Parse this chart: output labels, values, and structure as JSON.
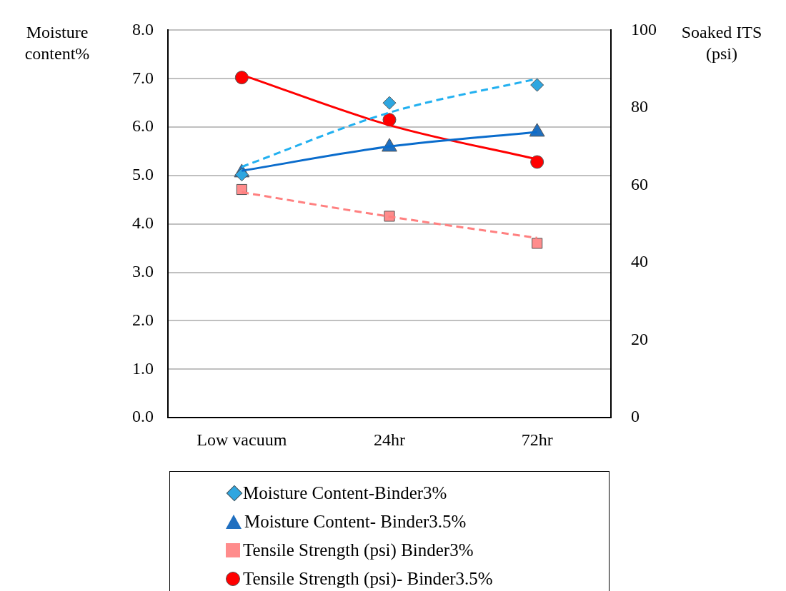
{
  "chart_data": {
    "type": "line",
    "ylabel": "Moisture content%",
    "y2label": "Soaked ITS (psi)",
    "categories": [
      "Low vacuum",
      "24hr",
      "72hr"
    ],
    "ylim": [
      0,
      8
    ],
    "yticks": [
      {
        "value": 0,
        "label": "0.0"
      },
      {
        "value": 1,
        "label": "1.0"
      },
      {
        "value": 2,
        "label": "2.0"
      },
      {
        "value": 3,
        "label": "3.0"
      },
      {
        "value": 4,
        "label": "4.0"
      },
      {
        "value": 5,
        "label": "5.0"
      },
      {
        "value": 6,
        "label": "6.0"
      },
      {
        "value": 7,
        "label": "7.0"
      },
      {
        "value": 8,
        "label": "8.0"
      }
    ],
    "y2lim": [
      0,
      100
    ],
    "y2ticks": [
      0,
      20,
      40,
      60,
      80,
      100
    ],
    "grid": "y",
    "legend": "bottom",
    "series": [
      {
        "type": "scatter",
        "name": "Moisture Content-Binder3%",
        "color": "#2ea6e0",
        "marker": "diamond",
        "values": [
          5.02,
          6.5,
          6.87
        ]
      },
      {
        "type": "scatter",
        "name": "Moisture Content- Binder3.5%",
        "color": "#1f6fc0",
        "marker": "triangle",
        "values": [
          5.06,
          5.59,
          5.9
        ]
      },
      {
        "type": "scatter",
        "name": "Tensile Strength (psi) Binder3%",
        "color": "#ff8c8c",
        "marker": "square",
        "axis": "y2",
        "values": [
          58.9,
          52.0,
          45.0
        ]
      },
      {
        "type": "scatter",
        "name": "Tensile Strength (psi)- Binder3.5%",
        "color": "#ff0000",
        "marker": "circle",
        "axis": "y2",
        "values": [
          87.8,
          76.9,
          66.0
        ]
      },
      {
        "type": "line",
        "color": "#22b0f0",
        "line_style": "dashed",
        "marker": "none",
        "values": [
          5.18,
          6.3,
          7.0
        ]
      },
      {
        "type": "line",
        "color": "#0a6ccc",
        "line_style": "solid",
        "marker": "none",
        "values": [
          5.1,
          5.6,
          5.9
        ]
      },
      {
        "type": "line",
        "color": "#ff8080",
        "line_style": "dashed",
        "marker": "none",
        "axis": "y2",
        "values": [
          58.2,
          51.9,
          46.4
        ]
      },
      {
        "type": "line",
        "color": "#ff0000",
        "line_style": "solid",
        "marker": "none",
        "axis": "y2",
        "values": [
          88.5,
          75.5,
          66.7
        ]
      }
    ]
  }
}
